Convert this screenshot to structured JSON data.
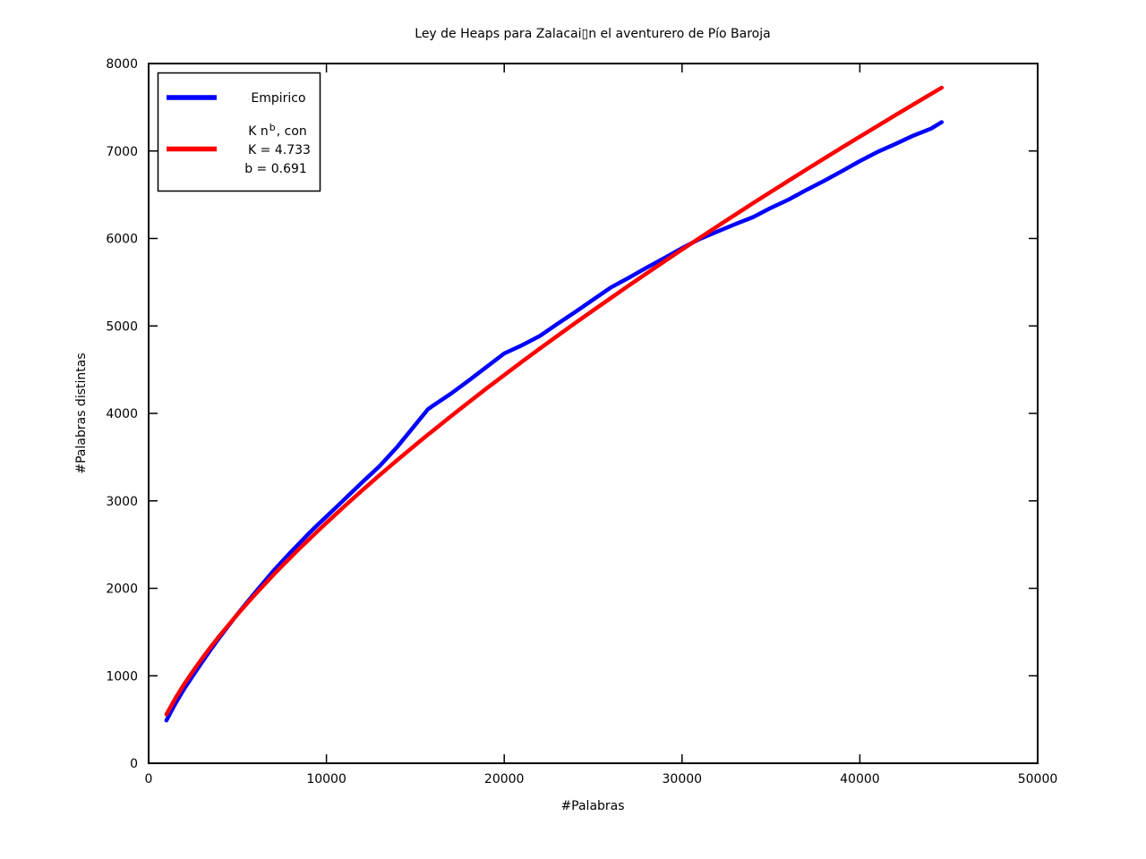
{
  "figure": {
    "background": "#ffffff",
    "frame_color": "#000000"
  },
  "chart_data": {
    "type": "line",
    "title": "Ley de Heaps para Zalacai▯n el aventurero de Pío Baroja",
    "xlabel": "#Palabras",
    "ylabel": "#Palabras distintas",
    "xlim": [
      0,
      50000
    ],
    "ylim": [
      0,
      8000
    ],
    "xticks": [
      0,
      10000,
      20000,
      30000,
      40000,
      50000
    ],
    "xtick_labels": [
      "0",
      "10000",
      "20000",
      "30000",
      "40000",
      "50000"
    ],
    "yticks": [
      0,
      1000,
      2000,
      3000,
      4000,
      5000,
      6000,
      7000,
      8000
    ],
    "ytick_labels": [
      "0",
      "1000",
      "2000",
      "3000",
      "4000",
      "5000",
      "6000",
      "7000",
      "8000"
    ],
    "grid": false,
    "legend_position": "upper-left",
    "x": [
      1000,
      1500,
      2000,
      2500,
      3000,
      3500,
      4000,
      4500,
      5000,
      5500,
      6000,
      6500,
      7000,
      7500,
      8000,
      8500,
      9000,
      9500,
      10000,
      11000,
      12000,
      13000,
      14000,
      15000,
      15700,
      16000,
      17000,
      18000,
      19000,
      20000,
      21000,
      22000,
      23000,
      24000,
      25000,
      26000,
      27000,
      28000,
      29000,
      30000,
      31000,
      32000,
      33000,
      34000,
      35000,
      36000,
      37000,
      38000,
      39000,
      40000,
      41000,
      42000,
      43000,
      44000,
      44600
    ],
    "series": [
      {
        "name": "Empirico",
        "color": "#0000ff",
        "values": [
          490,
          680,
          850,
          1005,
          1155,
          1300,
          1440,
          1575,
          1705,
          1830,
          1955,
          2075,
          2195,
          2305,
          2415,
          2520,
          2625,
          2725,
          2820,
          3015,
          3210,
          3400,
          3620,
          3870,
          4045,
          4090,
          4225,
          4375,
          4530,
          4685,
          4780,
          4885,
          5025,
          5160,
          5300,
          5440,
          5550,
          5665,
          5775,
          5890,
          5995,
          6080,
          6165,
          6245,
          6350,
          6445,
          6555,
          6660,
          6770,
          6885,
          6990,
          7080,
          7175,
          7255,
          7330
        ]
      },
      {
        "name": "K n^b, con K = 4.733, b = 0.691",
        "color": "#ff0000",
        "values": [
          560,
          741,
          904,
          1055,
          1197,
          1331,
          1460,
          1583,
          1703,
          1818,
          1932,
          2041,
          2149,
          2254,
          2356,
          2458,
          2556,
          2654,
          2749,
          2936,
          3118,
          3296,
          3469,
          3638,
          3755,
          3804,
          3967,
          4127,
          4284,
          4438,
          4591,
          4741,
          4888,
          5034,
          5178,
          5320,
          5461,
          5600,
          5737,
          5873,
          6008,
          6141,
          6273,
          6404,
          6533,
          6662,
          6789,
          6915,
          7040,
          7164,
          7287,
          7410,
          7531,
          7651,
          7724
        ]
      }
    ],
    "fit_params": {
      "K": "4.733",
      "b": "0.691"
    }
  },
  "legend": {
    "empirico_label": "Empirico",
    "fit_line1_pre": "K n",
    "fit_line1_sup": "b",
    "fit_line1_post": ", con",
    "fit_line2": "K = 4.733",
    "fit_line3": "b = 0.691"
  }
}
